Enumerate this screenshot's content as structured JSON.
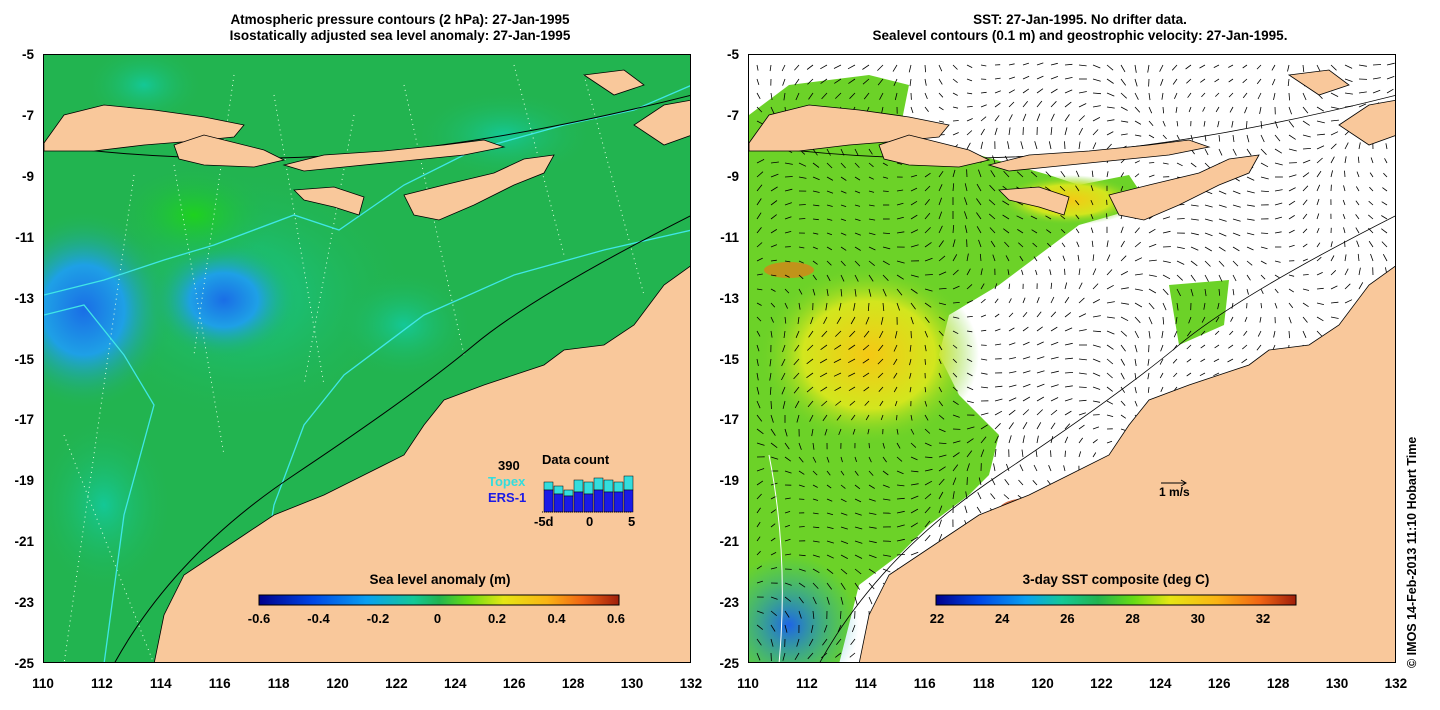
{
  "left_panel": {
    "title_line1": "Atmospheric pressure contours (2 hPa): 27-Jan-1995",
    "title_line2": "Isostatically adjusted sea level anomaly: 27-Jan-1995",
    "colorbar": {
      "title": "Sea level anomaly (m)",
      "ticks": [
        "-0.6",
        "-0.4",
        "-0.2",
        "0",
        "0.2",
        "0.4",
        "0.6"
      ]
    },
    "data_count": {
      "count": "390",
      "title": "Data count",
      "topex_label": "Topex",
      "ers_label": "ERS-1",
      "axis_ticks": [
        "-5d",
        "0",
        "5"
      ],
      "topex_color": "#33dddd",
      "ers_color": "#1a1ae6"
    }
  },
  "right_panel": {
    "title_line1": "SST: 27-Jan-1995. No drifter data.",
    "title_line2": "Sealevel contours (0.1 m) and geostrophic velocity: 27-Jan-1995.",
    "colorbar": {
      "title": "3-day SST composite (deg C)",
      "ticks": [
        "22",
        "24",
        "26",
        "28",
        "30",
        "32"
      ]
    },
    "velocity_scale": "1 m/s"
  },
  "axes": {
    "lat_ticks": [
      "-5",
      "-7",
      "-9",
      "-11",
      "-13",
      "-15",
      "-17",
      "-19",
      "-21",
      "-23",
      "-25"
    ],
    "lon_ticks": [
      "110",
      "112",
      "114",
      "116",
      "118",
      "120",
      "122",
      "124",
      "126",
      "128",
      "130",
      "132"
    ]
  },
  "colors": {
    "land": "#f9c89b",
    "ocean_green": "#22b450",
    "anomaly_blue": "#1ea0e6",
    "sst_white": "#ffffff"
  },
  "copyright": "© IMOS 14-Feb-2013 11:10 Hobart Time"
}
